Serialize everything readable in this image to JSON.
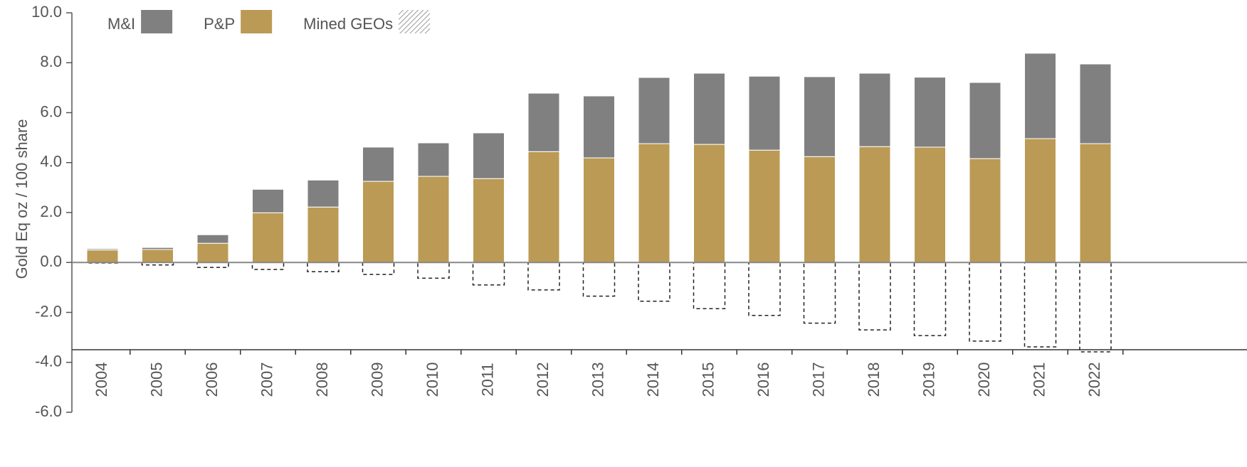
{
  "chart_data": {
    "type": "stacked_bar",
    "y_label": "Gold Eq oz / 100 share",
    "categories": [
      "2004",
      "2005",
      "2006",
      "2007",
      "2008",
      "2009",
      "2010",
      "2011",
      "2012",
      "2013",
      "2014",
      "2015",
      "2016",
      "2017",
      "2018",
      "2019",
      "2020",
      "2021",
      "2022"
    ],
    "series": [
      {
        "name": "P&P",
        "color": "#bb9a55",
        "style": "solid",
        "values": [
          0.5,
          0.52,
          0.77,
          1.99,
          2.22,
          3.25,
          3.45,
          3.36,
          4.44,
          4.19,
          4.76,
          4.73,
          4.5,
          4.24,
          4.64,
          4.62,
          4.16,
          4.96,
          4.76
        ]
      },
      {
        "name": "M&I",
        "color": "#808080",
        "style": "solid",
        "values": [
          0.05,
          0.08,
          0.34,
          0.94,
          1.08,
          1.37,
          1.34,
          1.83,
          2.34,
          2.48,
          2.65,
          2.85,
          2.96,
          3.2,
          2.94,
          2.8,
          3.05,
          3.42,
          3.19
        ]
      },
      {
        "name": "Mined GEOs",
        "color": "#222222",
        "style": "dashed",
        "values": [
          -0.02,
          -0.1,
          -0.2,
          -0.28,
          -0.37,
          -0.48,
          -0.63,
          -0.9,
          -1.1,
          -1.35,
          -1.55,
          -1.85,
          -2.12,
          -2.43,
          -2.7,
          -2.93,
          -3.15,
          -3.38,
          -3.58
        ]
      }
    ],
    "legend_order": [
      1,
      0,
      2
    ],
    "ylim": [
      -6,
      10
    ],
    "yticks": [
      {
        "value": -6,
        "label": "-6.0"
      },
      {
        "value": -4,
        "label": "-4.0"
      },
      {
        "value": -2,
        "label": "-2.0"
      },
      {
        "value": 0,
        "label": "0.0"
      },
      {
        "value": 2,
        "label": "2.0"
      },
      {
        "value": 4,
        "label": "4.0"
      },
      {
        "value": 6,
        "label": "6.0"
      },
      {
        "value": 8,
        "label": "8.0"
      },
      {
        "value": 10,
        "label": "10.0"
      }
    ],
    "grid": false
  }
}
